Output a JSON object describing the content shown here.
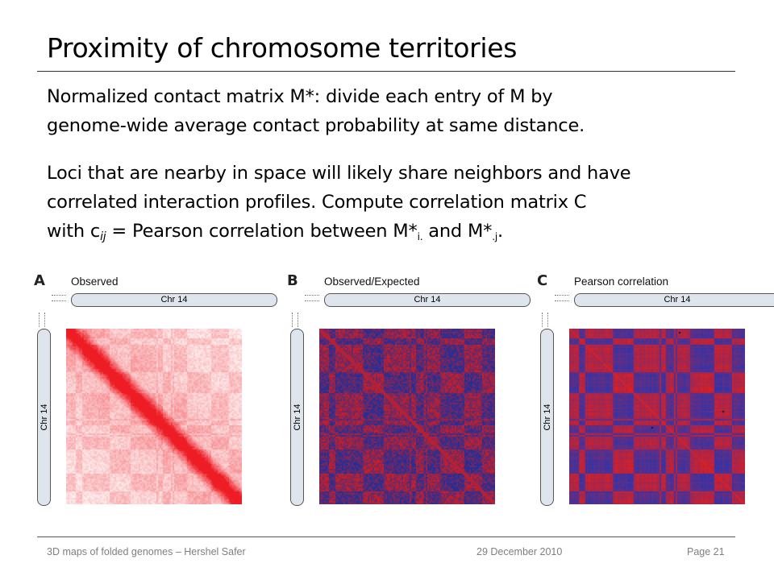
{
  "title": "Proximity of chromosome territories",
  "para1": {
    "line1": "Normalized contact matrix M*: divide each entry of M by",
    "line2": "genome-wide average contact probability at same distance."
  },
  "para2": {
    "line1": "Loci that are nearby in space will likely share neighbors and have",
    "line2": "correlated interaction profiles. Compute correlation matrix C",
    "line3_pre": "with c",
    "line3_sub": "ij",
    "line3_mid": " = Pearson correlation between M*",
    "line3_sub2": "i.",
    "line3_mid2": " and M*",
    "line3_sub3": ".j",
    "line3_end": "."
  },
  "panels": [
    {
      "letter": "A",
      "title": "Observed",
      "chr_label": "Chr 14",
      "style": "observed",
      "colors": {
        "bg": "#ffffff",
        "fg": "#ee1c24"
      }
    },
    {
      "letter": "B",
      "title": "Observed/Expected",
      "chr_label": "Chr 14",
      "style": "oe",
      "colors": {
        "bg": "#1e2f9a",
        "fg": "#d81e1e"
      }
    },
    {
      "letter": "C",
      "title": "Pearson correlation",
      "chr_label": "Chr 14",
      "style": "pearson",
      "colors": {
        "bg": "#2336b4",
        "fg": "#e01f1f"
      }
    }
  ],
  "footer": {
    "left": "3D maps of folded genomes – Hershel Safer",
    "center": "29 December 2010",
    "right": "Page 21"
  }
}
